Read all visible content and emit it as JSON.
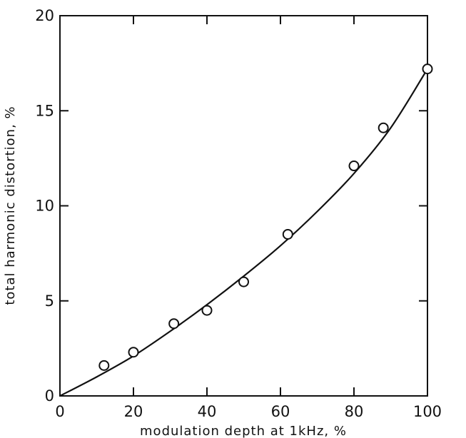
{
  "chart_data": {
    "type": "scatter",
    "xlabel": "modulation depth at 1kHz, %",
    "ylabel": "total harmonic distortion, %",
    "xlim": [
      0,
      100
    ],
    "ylim": [
      0,
      20
    ],
    "x_ticks": [
      0,
      20,
      40,
      60,
      80,
      100
    ],
    "y_ticks": [
      0,
      5,
      10,
      15,
      20
    ],
    "x_tick_labels": [
      "0",
      "20",
      "40",
      "60",
      "80",
      "100"
    ],
    "y_tick_labels": [
      "0",
      "5",
      "10",
      "15",
      "20"
    ],
    "grid": false,
    "series": [
      {
        "marker": "open-circle",
        "x": [
          12,
          20,
          31,
          40,
          50,
          62,
          80,
          88,
          100
        ],
        "y": [
          1.6,
          2.3,
          3.8,
          4.5,
          6.0,
          8.5,
          12.1,
          14.1,
          17.2
        ]
      },
      {
        "style": "line",
        "x": [
          0,
          10,
          20,
          30,
          40,
          50,
          60,
          70,
          80,
          90,
          100
        ],
        "y": [
          0,
          1.0,
          2.1,
          3.4,
          4.8,
          6.3,
          7.9,
          9.7,
          11.7,
          14.1,
          17.2
        ]
      }
    ]
  }
}
